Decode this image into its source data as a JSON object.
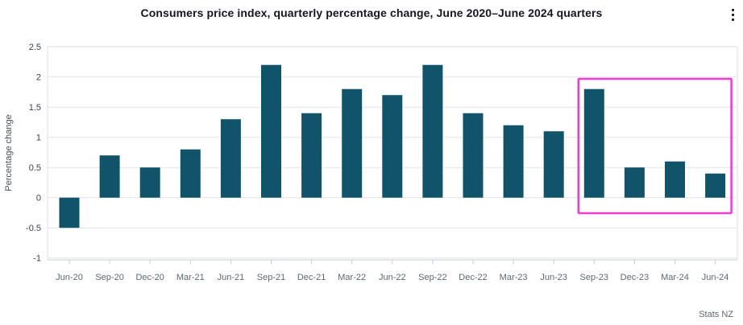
{
  "header": {
    "title": "Consumers price index, quarterly percentage change, June 2020–June 2024 quarters",
    "menu_icon": "kebab-menu-icon"
  },
  "footer": {
    "attribution": "Stats NZ"
  },
  "colors": {
    "bar": "#115469",
    "highlight_box": "#ee3bd2",
    "gridline": "#e3e3e3",
    "plot_border": "#dde3ea",
    "axis_line": "#c3cedb",
    "x_tick_label": "#5f6670",
    "y_tick_label": "#3c414b",
    "axis_title": "#474c55",
    "title_text": "#16161f",
    "attribution_text": "#5f656d"
  },
  "chart_data": {
    "type": "bar",
    "title": "Consumers price index, quarterly percentage change, June 2020–June 2024 quarters",
    "xlabel": "",
    "ylabel": "Percentage change",
    "categories": [
      "Jun-20",
      "Sep-20",
      "Dec-20",
      "Mar-21",
      "Jun-21",
      "Sep-21",
      "Dec-21",
      "Mar-22",
      "Jun-22",
      "Sep-22",
      "Dec-22",
      "Mar-23",
      "Jun-23",
      "Sep-23",
      "Dec-23",
      "Mar-24",
      "Jun-24"
    ],
    "values": [
      -0.5,
      0.7,
      0.5,
      0.8,
      1.3,
      2.2,
      1.4,
      1.8,
      1.7,
      2.2,
      1.4,
      1.2,
      1.1,
      1.8,
      0.5,
      0.6,
      0.4
    ],
    "ylim": [
      -1,
      2.5
    ],
    "ytick_step": 0.5,
    "grid": true,
    "legend_position": "none",
    "bar_color": "#115469",
    "highlight": {
      "start": "Sep-23",
      "end": "Jun-24",
      "color": "#ee3bd2",
      "note": "box outlining the four most recent quarters"
    },
    "attribution": "Stats NZ"
  }
}
